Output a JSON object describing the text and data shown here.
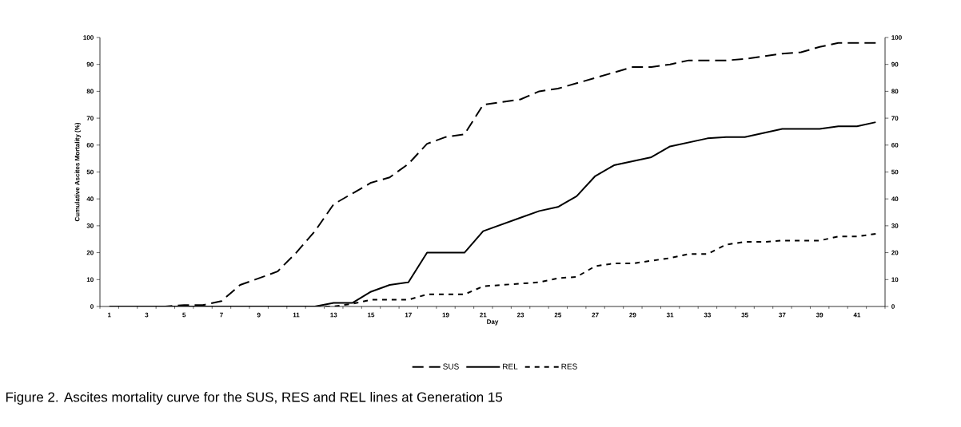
{
  "chart_data": {
    "type": "line",
    "xlabel": "Day",
    "ylabel": "Cumulative Ascites Mortality (%)",
    "annotations": [
      "Figure 2.  Ascites mortality curve for the SUS, RES and REL lines at Generation 15"
    ],
    "categories": [
      "1",
      null,
      "3",
      null,
      "5",
      null,
      "7",
      null,
      "9",
      null,
      "11",
      null,
      "13",
      null,
      "15",
      null,
      "17",
      null,
      "19",
      null,
      "21",
      null,
      "23",
      null,
      "25",
      null,
      "27",
      null,
      "29",
      null,
      "31",
      null,
      "33",
      null,
      "35",
      null,
      "37",
      null,
      "39",
      null,
      "41",
      null
    ],
    "series": [
      {
        "name": "SUS",
        "color": "#000000",
        "line_style": "dashed",
        "values": [
          0,
          0,
          0,
          0,
          0.5,
          0.5,
          2,
          8,
          10.5,
          13,
          20,
          28,
          38,
          42,
          46,
          48,
          53,
          60.5,
          63,
          64,
          75,
          76,
          77,
          80,
          81,
          83,
          85,
          87,
          89,
          89,
          90,
          91.5,
          91.5,
          91.5,
          92,
          93,
          94,
          94.5,
          96.5,
          98,
          98,
          98
        ]
      },
      {
        "name": "REL",
        "color": "#000000",
        "line_style": "solid",
        "values": [
          0,
          0,
          0,
          0,
          0,
          0,
          0,
          0,
          0,
          0,
          0,
          0,
          1.3,
          1.3,
          5.5,
          8,
          9,
          20,
          20,
          20,
          28,
          30.5,
          33,
          35.5,
          37,
          41,
          48.5,
          52.5,
          54,
          55.5,
          59.5,
          61,
          62.5,
          63,
          63,
          64.5,
          66,
          66,
          66,
          67,
          67,
          68.5
        ]
      },
      {
        "name": "RES",
        "color": "#000000",
        "line_style": "dotted",
        "values": [
          0,
          0,
          0,
          0,
          0,
          0,
          0,
          0,
          0,
          0,
          0,
          0,
          0,
          1,
          2.5,
          2.5,
          2.5,
          4.5,
          4.5,
          4.5,
          7.5,
          8,
          8.5,
          9,
          10.5,
          11,
          15,
          16,
          16,
          17,
          18,
          19.5,
          19.5,
          23,
          24,
          24,
          24.5,
          24.5,
          24.5,
          26,
          26,
          27
        ]
      }
    ],
    "ylim": [
      0,
      100
    ],
    "yticks": [
      0,
      10,
      20,
      30,
      40,
      50,
      60,
      70,
      80,
      90,
      100
    ],
    "y2lim": [
      0,
      100
    ],
    "y2ticks": [
      0,
      10,
      20,
      30,
      40,
      50,
      60,
      70,
      80,
      90,
      100
    ],
    "legend": "bottom",
    "grid": false,
    "marker": "none"
  }
}
